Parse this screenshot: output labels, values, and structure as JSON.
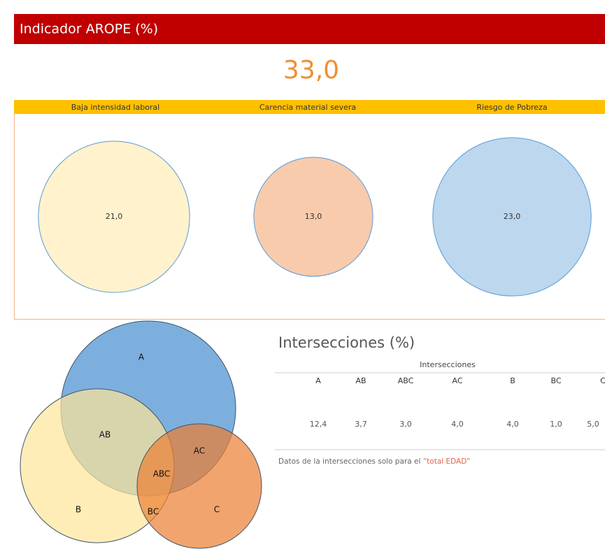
{
  "header": {
    "title": "Indicador AROPE (%)"
  },
  "kpi": {
    "label": "33,0"
  },
  "bubbles": {
    "items": [
      {
        "name": "Baja intensidad laboral",
        "value": 21.0,
        "label": "21,0",
        "color": "#fff2cc"
      },
      {
        "name": "Carencia material severa",
        "value": 13.0,
        "label": "13,0",
        "color": "#f8cbad"
      },
      {
        "name": "Riesgo de Pobreza",
        "value": 23.0,
        "label": "23,0",
        "color": "#bdd7ee"
      }
    ]
  },
  "venn": {
    "labels": [
      "A",
      "AB",
      "AC",
      "ABC",
      "B",
      "BC",
      "C"
    ]
  },
  "table": {
    "title": "Intersecciones (%)",
    "header": "Intersecciones",
    "columns": [
      "A",
      "AB",
      "ABC",
      "AC",
      "B",
      "BC",
      "C"
    ],
    "rows": [
      [
        "12,4",
        "3,7",
        "3,0",
        "4,0",
        "4,0",
        "1,0",
        "5,0"
      ]
    ],
    "note": {
      "text": "Datos de la intersecciones solo para el ",
      "highlight": "”total EDAD”"
    }
  }
}
